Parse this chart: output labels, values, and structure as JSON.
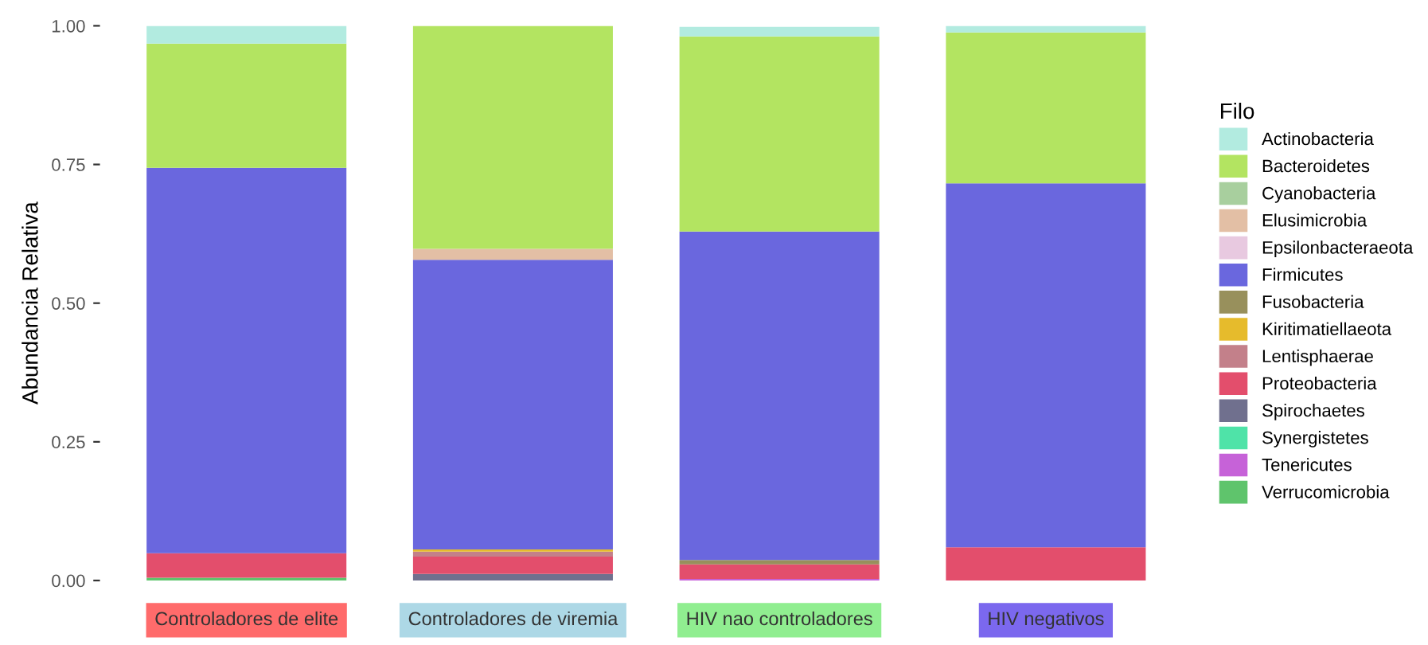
{
  "chart_data": {
    "type": "bar",
    "stacked": true,
    "ylabel": "Abundancia Relativa",
    "legend_title": "Filo",
    "legend": "right",
    "grid": false,
    "categories": [
      "Controladores de elite",
      "Controladores de viremia",
      "HIV nao controladores",
      "HIV negativos"
    ],
    "ylim": [
      0,
      1
    ],
    "yticks": [
      {
        "value": 0,
        "label": "0.00"
      },
      {
        "value": 0.25,
        "label": "0.25"
      },
      {
        "value": 0.5,
        "label": "0.50"
      },
      {
        "value": 0.75,
        "label": "0.75"
      },
      {
        "value": 1,
        "label": "1.00"
      }
    ],
    "series": [
      {
        "name": "Verrucomicrobia",
        "color": "#5fc46c",
        "values": [
          0.005,
          null,
          null,
          null
        ]
      },
      {
        "name": "Tenericutes",
        "color": "#c662d8",
        "values": [
          null,
          null,
          0.003,
          null
        ]
      },
      {
        "name": "Synergistetes",
        "color": "#4fe3a8",
        "values": [
          null,
          null,
          null,
          null
        ]
      },
      {
        "name": "Spirochaetes",
        "color": "#70708e",
        "values": [
          null,
          0.012,
          null,
          null
        ]
      },
      {
        "name": "Proteobacteria",
        "color": "#e34e6c",
        "values": [
          0.044,
          0.031,
          0.026,
          0.06
        ]
      },
      {
        "name": "Lentisphaerae",
        "color": "#c3808a",
        "values": [
          null,
          0.009,
          null,
          null
        ]
      },
      {
        "name": "Kiritimatiellaeota",
        "color": "#e6bb2c",
        "values": [
          null,
          0.004,
          null,
          null
        ]
      },
      {
        "name": "Fusobacteria",
        "color": "#98905c",
        "values": [
          null,
          null,
          0.008,
          null
        ]
      },
      {
        "name": "Firmicutes",
        "color": "#6a67de",
        "values": [
          0.695,
          0.522,
          0.592,
          0.656
        ]
      },
      {
        "name": "Epsilonbacteraeota",
        "color": "#e8c9e0",
        "values": [
          null,
          null,
          null,
          null
        ]
      },
      {
        "name": "Elusimicrobia",
        "color": "#e3bfa5",
        "values": [
          null,
          0.02,
          null,
          null
        ]
      },
      {
        "name": "Cyanobacteria",
        "color": "#a8cf9e",
        "values": [
          null,
          null,
          null,
          null
        ]
      },
      {
        "name": "Bacteroidetes",
        "color": "#b3e461",
        "values": [
          0.224,
          0.402,
          0.352,
          0.272
        ]
      },
      {
        "name": "Actinobacteria",
        "color": "#b2ebe0",
        "values": [
          0.032,
          null,
          0.017,
          0.012
        ]
      }
    ]
  }
}
